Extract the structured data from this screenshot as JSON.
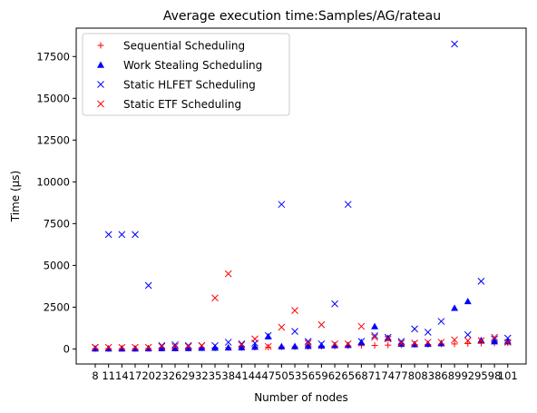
{
  "chart_data": {
    "type": "scatter",
    "title": "Average execution time:Samples/AG/rateau",
    "xlabel": "Number of nodes",
    "ylabel": "Time (µs)",
    "categories": [
      "8",
      "11",
      "14",
      "17",
      "20",
      "23",
      "26",
      "29",
      "32",
      "35",
      "38",
      "41",
      "44",
      "47",
      "50",
      "53",
      "56",
      "59",
      "62",
      "65",
      "68",
      "71",
      "74",
      "77",
      "80",
      "83",
      "86",
      "89",
      "92",
      "95",
      "98",
      "101"
    ],
    "yticks": [
      0,
      2500,
      5000,
      7500,
      10000,
      12500,
      15000,
      17500
    ],
    "ylim": [
      -900,
      19200
    ],
    "grid": false,
    "legend_position": "top-left",
    "series": [
      {
        "name": "Sequential Scheduling",
        "marker": "plus",
        "color": "#ff0000",
        "values": [
          20,
          20,
          20,
          20,
          30,
          40,
          40,
          40,
          60,
          60,
          80,
          80,
          100,
          110,
          120,
          130,
          140,
          160,
          170,
          190,
          200,
          210,
          230,
          240,
          260,
          270,
          290,
          300,
          320,
          340,
          350,
          370
        ]
      },
      {
        "name": "Work Stealing Scheduling",
        "marker": "triangle",
        "color": "#0000ff",
        "values": [
          20,
          20,
          20,
          20,
          30,
          40,
          40,
          50,
          60,
          70,
          80,
          90,
          120,
          750,
          150,
          160,
          180,
          200,
          220,
          230,
          400,
          1350,
          650,
          300,
          280,
          300,
          330,
          2450,
          2850,
          520,
          450,
          440
        ]
      },
      {
        "name": "Static HLFET Scheduling",
        "marker": "x",
        "color": "#0000ff",
        "values": [
          100,
          6850,
          6850,
          6850,
          3800,
          200,
          250,
          200,
          200,
          200,
          400,
          300,
          350,
          800,
          8650,
          1050,
          450,
          300,
          2700,
          8650,
          450,
          800,
          700,
          450,
          1200,
          1000,
          1650,
          18250,
          850,
          4050,
          600,
          650
        ]
      },
      {
        "name": "Static ETF Scheduling",
        "marker": "x",
        "color": "#ff0000",
        "values": [
          100,
          100,
          100,
          100,
          100,
          150,
          150,
          150,
          200,
          3050,
          4500,
          250,
          600,
          150,
          1300,
          2300,
          350,
          1450,
          300,
          300,
          1350,
          700,
          600,
          350,
          350,
          400,
          400,
          550,
          500,
          500,
          700,
          400
        ]
      }
    ]
  }
}
